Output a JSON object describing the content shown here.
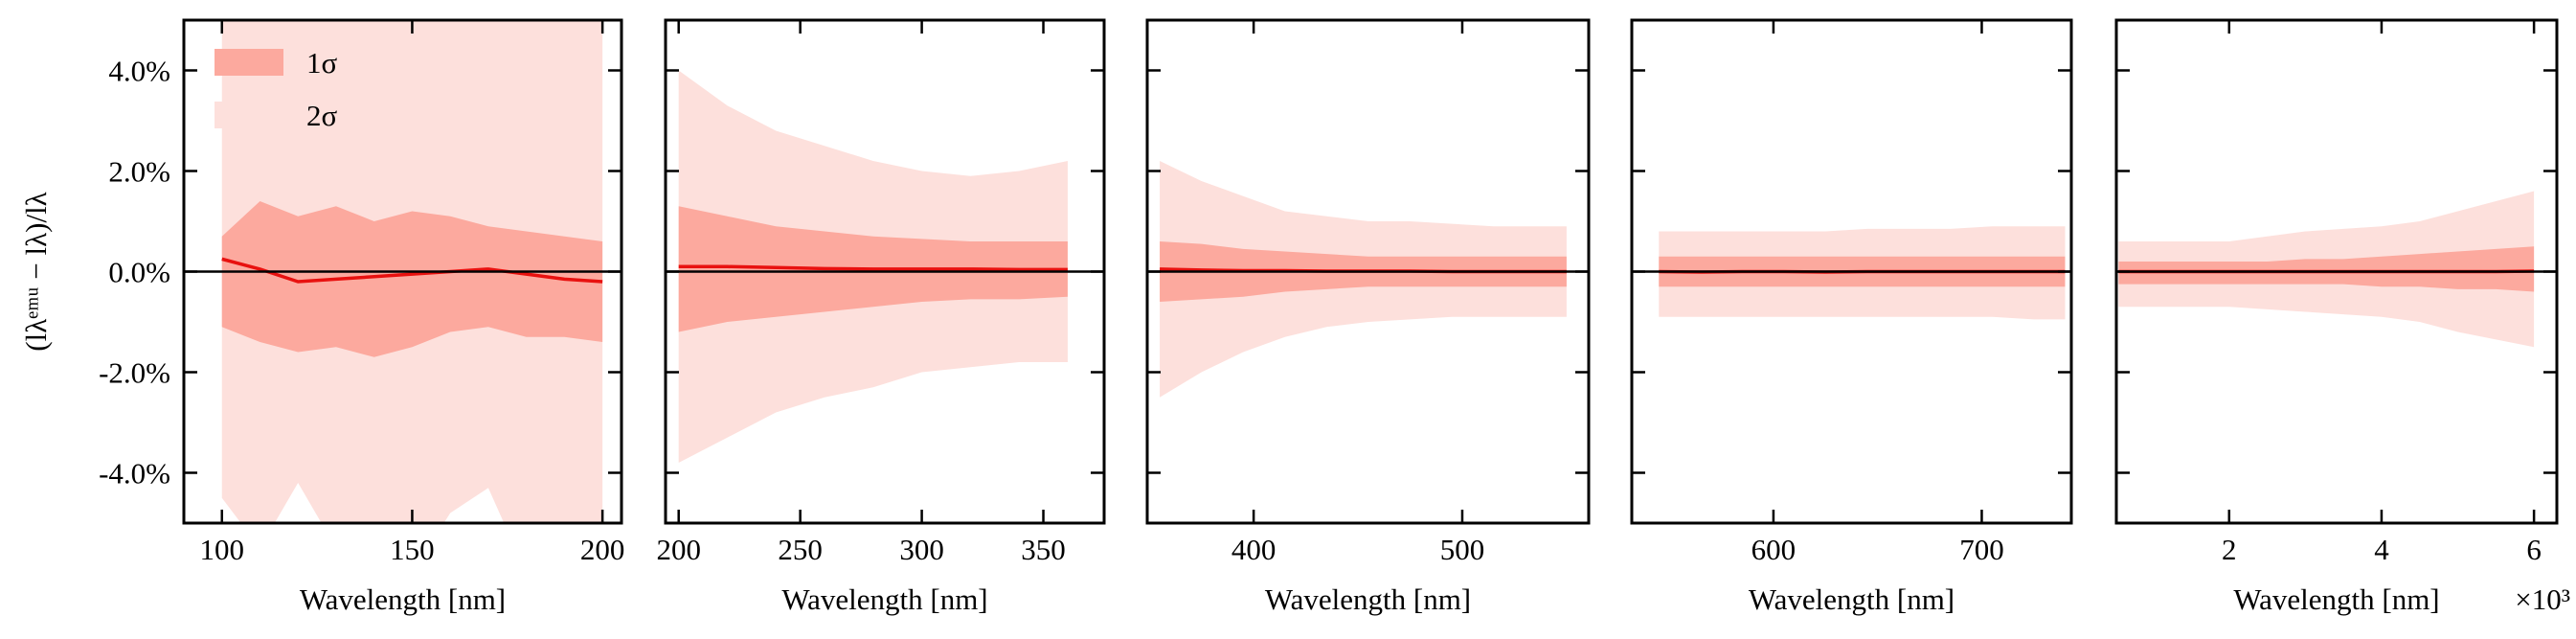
{
  "chart_data": [
    {
      "type": "band-line",
      "xlabel": "Wavelength [nm]",
      "ylabel": "(lλᵉᵐᵘ − lλ)/lλ",
      "xlim": [
        90,
        205
      ],
      "xticks": [
        100,
        150,
        200
      ],
      "ylim": [
        -5,
        5
      ],
      "yticks": [
        {
          "value": -4,
          "label": "-4.0%"
        },
        {
          "value": -2,
          "label": "-2.0%"
        },
        {
          "value": 0,
          "label": "0.0%"
        },
        {
          "value": 2,
          "label": "2.0%"
        },
        {
          "value": 4,
          "label": "4.0%"
        }
      ],
      "ytick_labels": true,
      "reference_line": 0,
      "legend": "upper left",
      "x": [
        100,
        110,
        120,
        130,
        140,
        150,
        160,
        170,
        180,
        190,
        200
      ],
      "series": [
        {
          "name": "2σ",
          "color": "#fde0dc",
          "upper": [
            6,
            6,
            6,
            6,
            6,
            6,
            6,
            6,
            6,
            6,
            6
          ],
          "lower": [
            -4.5,
            -5.5,
            -4.2,
            -5.5,
            -5,
            -6,
            -4.8,
            -4.3,
            -6,
            -5,
            -5.5
          ]
        },
        {
          "name": "1σ",
          "color": "#fca99e",
          "upper": [
            0.7,
            1.4,
            1.1,
            1.3,
            1.0,
            1.2,
            1.1,
            0.9,
            0.8,
            0.7,
            0.6
          ],
          "lower": [
            -1.1,
            -1.4,
            -1.6,
            -1.5,
            -1.7,
            -1.5,
            -1.2,
            -1.1,
            -1.3,
            -1.3,
            -1.4
          ]
        },
        {
          "color": "#e8110f",
          "values": [
            0.25,
            0.05,
            -0.2,
            -0.15,
            -0.1,
            -0.05,
            0.0,
            0.05,
            -0.05,
            -0.15,
            -0.2
          ]
        }
      ]
    },
    {
      "type": "band-line",
      "xlabel": "Wavelength [nm]",
      "xlim": [
        194.6,
        375
      ],
      "xticks": [
        200,
        250,
        300,
        350
      ],
      "ylim": [
        -5,
        5
      ],
      "yticks": [
        -4,
        -2,
        0,
        2,
        4
      ],
      "ytick_labels": false,
      "reference_line": 0,
      "x": [
        200,
        220,
        240,
        260,
        280,
        300,
        320,
        340,
        360
      ],
      "series": [
        {
          "color": "#fde0dc",
          "upper": [
            4.0,
            3.3,
            2.8,
            2.5,
            2.2,
            2.0,
            1.9,
            2.0,
            2.2
          ],
          "lower": [
            -3.8,
            -3.3,
            -2.8,
            -2.5,
            -2.3,
            -2.0,
            -1.9,
            -1.8,
            -1.8
          ]
        },
        {
          "color": "#fca99e",
          "upper": [
            1.3,
            1.1,
            0.9,
            0.8,
            0.7,
            0.65,
            0.6,
            0.6,
            0.6
          ],
          "lower": [
            -1.2,
            -1.0,
            -0.9,
            -0.8,
            -0.7,
            -0.6,
            -0.55,
            -0.55,
            -0.5
          ]
        },
        {
          "color": "#e8110f",
          "values": [
            0.1,
            0.1,
            0.08,
            0.06,
            0.05,
            0.05,
            0.05,
            0.04,
            0.04
          ]
        }
      ]
    },
    {
      "type": "band-line",
      "xlabel": "Wavelength [nm]",
      "xlim": [
        349,
        560.6
      ],
      "xticks": [
        400,
        500
      ],
      "ylim": [
        -5,
        5
      ],
      "yticks": [
        -4,
        -2,
        0,
        2,
        4
      ],
      "ytick_labels": false,
      "reference_line": 0,
      "x": [
        355,
        375,
        395,
        415,
        435,
        455,
        475,
        495,
        515,
        535,
        550
      ],
      "series": [
        {
          "color": "#fde0dc",
          "upper": [
            2.2,
            1.8,
            1.5,
            1.2,
            1.1,
            1.0,
            1.0,
            0.95,
            0.9,
            0.9,
            0.9
          ],
          "lower": [
            -2.5,
            -2.0,
            -1.6,
            -1.3,
            -1.1,
            -1.0,
            -0.95,
            -0.9,
            -0.9,
            -0.9,
            -0.9
          ]
        },
        {
          "color": "#fca99e",
          "upper": [
            0.6,
            0.55,
            0.45,
            0.4,
            0.35,
            0.3,
            0.3,
            0.3,
            0.3,
            0.3,
            0.3
          ],
          "lower": [
            -0.6,
            -0.55,
            -0.5,
            -0.4,
            -0.35,
            -0.3,
            -0.3,
            -0.3,
            -0.3,
            -0.3,
            -0.3
          ]
        },
        {
          "color": "#e8110f",
          "values": [
            0.05,
            0.03,
            0.02,
            0.02,
            0.01,
            0.01,
            0.01,
            0,
            0,
            0,
            0
          ]
        }
      ]
    },
    {
      "type": "band-line",
      "xlabel": "Wavelength [nm]",
      "xlim": [
        532,
        743
      ],
      "xticks": [
        600,
        700
      ],
      "ylim": [
        -5,
        5
      ],
      "yticks": [
        -4,
        -2,
        0,
        2,
        4
      ],
      "ytick_labels": false,
      "reference_line": 0,
      "x": [
        545,
        565,
        585,
        605,
        625,
        645,
        665,
        685,
        705,
        725,
        740
      ],
      "series": [
        {
          "color": "#fde0dc",
          "upper": [
            0.8,
            0.8,
            0.8,
            0.8,
            0.8,
            0.85,
            0.85,
            0.85,
            0.9,
            0.9,
            0.9
          ],
          "lower": [
            -0.9,
            -0.9,
            -0.9,
            -0.9,
            -0.9,
            -0.9,
            -0.9,
            -0.9,
            -0.9,
            -0.95,
            -0.95
          ]
        },
        {
          "color": "#fca99e",
          "upper": [
            0.3,
            0.3,
            0.3,
            0.3,
            0.3,
            0.3,
            0.3,
            0.3,
            0.3,
            0.3,
            0.3
          ],
          "lower": [
            -0.3,
            -0.3,
            -0.3,
            -0.3,
            -0.3,
            -0.3,
            -0.3,
            -0.3,
            -0.3,
            -0.3,
            -0.3
          ]
        },
        {
          "color": "#e8110f",
          "values": [
            0,
            -0.01,
            0,
            0,
            -0.01,
            0,
            0,
            0,
            0,
            0,
            0
          ]
        }
      ]
    },
    {
      "type": "band-line",
      "xlabel": "Wavelength [nm]",
      "x_offset_label": "×10³",
      "xlim": [
        0.52,
        6.3
      ],
      "xticks": [
        2,
        4,
        6
      ],
      "ylim": [
        -5,
        5
      ],
      "yticks": [
        -4,
        -2,
        0,
        2,
        4
      ],
      "ytick_labels": false,
      "reference_line": 0,
      "x": [
        0.55,
        1,
        1.5,
        2,
        2.5,
        3,
        3.5,
        4,
        4.5,
        5,
        5.5,
        6
      ],
      "series": [
        {
          "color": "#fde0dc",
          "upper": [
            0.6,
            0.6,
            0.6,
            0.6,
            0.7,
            0.8,
            0.85,
            0.9,
            1.0,
            1.2,
            1.4,
            1.6
          ],
          "lower": [
            -0.7,
            -0.7,
            -0.7,
            -0.7,
            -0.75,
            -0.8,
            -0.85,
            -0.9,
            -1.0,
            -1.2,
            -1.35,
            -1.5
          ]
        },
        {
          "color": "#fca99e",
          "upper": [
            0.2,
            0.2,
            0.2,
            0.2,
            0.2,
            0.25,
            0.25,
            0.3,
            0.35,
            0.4,
            0.45,
            0.5
          ],
          "lower": [
            -0.25,
            -0.25,
            -0.25,
            -0.25,
            -0.25,
            -0.25,
            -0.25,
            -0.3,
            -0.3,
            -0.35,
            -0.35,
            -0.4
          ]
        },
        {
          "color": "#e8110f",
          "values": [
            0,
            0,
            0,
            0,
            0,
            0,
            0,
            0,
            0,
            0,
            0,
            0.01
          ]
        }
      ]
    }
  ]
}
